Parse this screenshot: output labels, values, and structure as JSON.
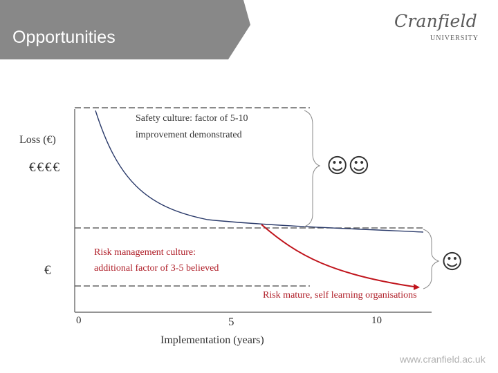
{
  "slide": {
    "title": "Opportunities",
    "logo": {
      "name": "Cranfield",
      "subtitle": "UNIVERSITY"
    },
    "footer_url": "www.cranfield.ac.uk"
  },
  "diagram": {
    "y_axis_label": "Loss (€)",
    "y_levels": {
      "high": "€€€€",
      "low": "€"
    },
    "x_axis_label": "Implementation (years)",
    "x_ticks": [
      "0",
      "5",
      "10"
    ],
    "annotations": {
      "safety_culture_line1": "Safety culture: factor of 5-10",
      "safety_culture_line2": "improvement demonstrated",
      "risk_mgmt_line1": "Risk management culture:",
      "risk_mgmt_line2": "additional factor of 3-5 believed",
      "risk_mature": "Risk mature, self learning organisations"
    },
    "smileys": {
      "upper": "☺☺",
      "lower": "☺"
    },
    "colors": {
      "baseline_curve": "#2a3a6a",
      "improved_curve": "#c0141c",
      "header_band": "#888888"
    }
  }
}
